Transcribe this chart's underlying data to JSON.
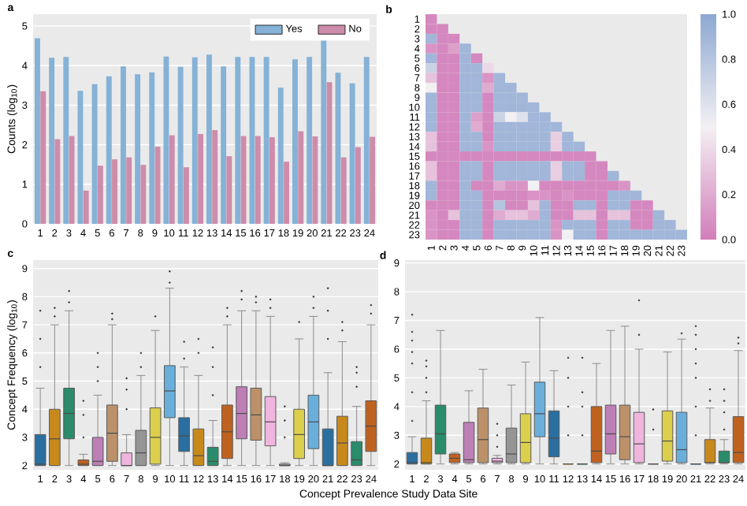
{
  "chart_data": [
    {
      "type": "bar",
      "title": "a",
      "ylabel": "Counts (log$_{10}$)",
      "categories": [
        "1",
        "2",
        "3",
        "4",
        "5",
        "6",
        "7",
        "8",
        "9",
        "10",
        "11",
        "12",
        "13",
        "14",
        "15",
        "16",
        "17",
        "18",
        "19",
        "20",
        "21",
        "22",
        "23",
        "24"
      ],
      "series": [
        {
          "name": "Yes",
          "color": "#85b2d6",
          "values": [
            4.69,
            4.2,
            4.22,
            3.36,
            3.53,
            3.73,
            3.98,
            3.78,
            3.83,
            4.23,
            3.97,
            4.21,
            4.28,
            3.98,
            4.22,
            4.22,
            4.22,
            3.44,
            4.16,
            4.22,
            4.73,
            3.82,
            3.55,
            4.22
          ]
        },
        {
          "name": "No",
          "color": "#cd8caa",
          "values": [
            3.35,
            2.14,
            2.22,
            0.84,
            1.47,
            1.63,
            1.68,
            1.49,
            1.95,
            2.24,
            1.43,
            2.27,
            2.37,
            1.71,
            2.22,
            2.22,
            2.19,
            1.57,
            2.34,
            2.21,
            3.58,
            1.68,
            1.94,
            2.2
          ]
        }
      ],
      "ylim": [
        0,
        5.3
      ],
      "yticks": [
        0,
        1,
        2,
        3,
        4,
        5
      ],
      "grid": "y",
      "legend": "top right"
    },
    {
      "type": "heatmap",
      "title": "b",
      "categories": [
        "1",
        "2",
        "3",
        "4",
        "5",
        "6",
        "7",
        "8",
        "9",
        "10",
        "11",
        "12",
        "13",
        "14",
        "15",
        "16",
        "17",
        "18",
        "19",
        "20",
        "21",
        "22",
        "23"
      ],
      "y_categories": [
        "1",
        "2",
        "3",
        "4",
        "5",
        "6",
        "7",
        "8",
        "9",
        "10",
        "11",
        "12",
        "13",
        "14",
        "15",
        "16",
        "17",
        "18",
        "19",
        "20",
        "21",
        "22",
        "23"
      ],
      "cells": [
        [
          0.05,
          null,
          null,
          null,
          null,
          null,
          null,
          null,
          null,
          null,
          null,
          null,
          null,
          null,
          null,
          null,
          null,
          null,
          null,
          null,
          null,
          null,
          null
        ],
        [
          0.05,
          0.05,
          null,
          null,
          null,
          null,
          null,
          null,
          null,
          null,
          null,
          null,
          null,
          null,
          null,
          null,
          null,
          null,
          null,
          null,
          null,
          null,
          null
        ],
        [
          0.9,
          0.05,
          0.05,
          null,
          null,
          null,
          null,
          null,
          null,
          null,
          null,
          null,
          null,
          null,
          null,
          null,
          null,
          null,
          null,
          null,
          null,
          null,
          null
        ],
        [
          0.1,
          0.05,
          0.15,
          0.9,
          null,
          null,
          null,
          null,
          null,
          null,
          null,
          null,
          null,
          null,
          null,
          null,
          null,
          null,
          null,
          null,
          null,
          null,
          null
        ],
        [
          0.9,
          0.05,
          0.05,
          0.9,
          0.05,
          null,
          null,
          null,
          null,
          null,
          null,
          null,
          null,
          null,
          null,
          null,
          null,
          null,
          null,
          null,
          null,
          null,
          null
        ],
        [
          0.7,
          0.05,
          0.05,
          0.9,
          0.9,
          0.4,
          null,
          null,
          null,
          null,
          null,
          null,
          null,
          null,
          null,
          null,
          null,
          null,
          null,
          null,
          null,
          null,
          null
        ],
        [
          0.3,
          0.05,
          0.05,
          0.9,
          0.9,
          0.1,
          0.9,
          null,
          null,
          null,
          null,
          null,
          null,
          null,
          null,
          null,
          null,
          null,
          null,
          null,
          null,
          null,
          null
        ],
        [
          0.5,
          0.05,
          0.05,
          0.9,
          0.9,
          0.2,
          0.9,
          0.9,
          null,
          null,
          null,
          null,
          null,
          null,
          null,
          null,
          null,
          null,
          null,
          null,
          null,
          null,
          null
        ],
        [
          0.9,
          0.05,
          0.05,
          0.9,
          0.9,
          0.05,
          0.9,
          0.9,
          0.9,
          null,
          null,
          null,
          null,
          null,
          null,
          null,
          null,
          null,
          null,
          null,
          null,
          null,
          null
        ],
        [
          0.9,
          0.05,
          0.05,
          0.9,
          0.9,
          0.05,
          0.9,
          0.9,
          0.9,
          0.9,
          null,
          null,
          null,
          null,
          null,
          null,
          null,
          null,
          null,
          null,
          null,
          null,
          null
        ],
        [
          0.9,
          0.05,
          0.05,
          0.9,
          0.15,
          0.05,
          0.7,
          0.5,
          0.6,
          0.9,
          0.9,
          null,
          null,
          null,
          null,
          null,
          null,
          null,
          null,
          null,
          null,
          null,
          null
        ],
        [
          0.9,
          0.05,
          0.05,
          0.9,
          0.2,
          0.05,
          0.9,
          0.9,
          0.9,
          0.9,
          0.9,
          0.9,
          null,
          null,
          null,
          null,
          null,
          null,
          null,
          null,
          null,
          null,
          null
        ],
        [
          0.3,
          0.05,
          0.05,
          0.9,
          0.9,
          0.05,
          0.9,
          0.9,
          0.9,
          0.9,
          0.9,
          0.35,
          0.9,
          null,
          null,
          null,
          null,
          null,
          null,
          null,
          null,
          null,
          null
        ],
        [
          0.3,
          0.05,
          0.05,
          0.9,
          0.9,
          0.1,
          0.9,
          0.9,
          0.9,
          0.9,
          0.9,
          0.35,
          0.9,
          0.9,
          null,
          null,
          null,
          null,
          null,
          null,
          null,
          null,
          null
        ],
        [
          0.05,
          0.05,
          0.05,
          0.05,
          0.05,
          0.05,
          0.05,
          0.05,
          0.05,
          0.05,
          0.05,
          0.05,
          0.05,
          0.05,
          0.05,
          null,
          null,
          null,
          null,
          null,
          null,
          null,
          null
        ],
        [
          0.3,
          0.05,
          0.05,
          0.9,
          0.9,
          0.05,
          0.9,
          0.9,
          0.9,
          0.9,
          0.9,
          0.35,
          0.9,
          0.9,
          0.05,
          0.05,
          null,
          null,
          null,
          null,
          null,
          null,
          null
        ],
        [
          0.3,
          0.05,
          0.05,
          0.9,
          0.9,
          0.05,
          0.9,
          0.9,
          0.9,
          0.9,
          0.9,
          0.35,
          0.9,
          0.9,
          0.05,
          0.05,
          0.9,
          null,
          null,
          null,
          null,
          null,
          null
        ],
        [
          0.9,
          0.05,
          0.05,
          0.9,
          0.05,
          0.05,
          0.2,
          0.1,
          0.1,
          0.5,
          0.05,
          0.05,
          0.05,
          0.05,
          0.05,
          0.05,
          0.05,
          0.1,
          null,
          null,
          null,
          null,
          null
        ],
        [
          0.9,
          0.05,
          0.05,
          0.9,
          0.9,
          0.05,
          0.05,
          0.05,
          0.05,
          0.1,
          0.1,
          0.05,
          0.1,
          0.05,
          0.05,
          0.05,
          0.9,
          0.9,
          0.9,
          null,
          null,
          null,
          null
        ],
        [
          0.05,
          0.05,
          0.05,
          0.9,
          0.9,
          0.05,
          0.8,
          0.05,
          0.05,
          0.3,
          0.9,
          0.05,
          0.05,
          0.9,
          0.9,
          0.05,
          0.9,
          0.9,
          0.05,
          0.05,
          null,
          null,
          null
        ],
        [
          0.1,
          0.05,
          0.3,
          0.9,
          0.9,
          0.05,
          0.2,
          0.3,
          0.3,
          0.2,
          0.9,
          0.05,
          0.05,
          0.3,
          0.3,
          0.05,
          0.3,
          0.3,
          0.05,
          0.05,
          0.9,
          null,
          null
        ],
        [
          0.1,
          0.05,
          0.05,
          0.9,
          0.9,
          0.05,
          0.9,
          0.9,
          0.9,
          0.9,
          0.9,
          0.1,
          0.9,
          0.9,
          0.9,
          0.05,
          0.9,
          0.9,
          0.05,
          0.05,
          0.9,
          0.9,
          null
        ],
        [
          0.1,
          0.05,
          0.05,
          0.9,
          0.9,
          0.05,
          0.9,
          0.9,
          0.9,
          0.9,
          0.9,
          0.1,
          0.5,
          0.9,
          0.9,
          0.05,
          0.9,
          0.9,
          0.9,
          0.9,
          0.9,
          0.9,
          0.9
        ]
      ],
      "clim": [
        0,
        1
      ],
      "cticks": [
        {
          "value": 0,
          "label": "0.0"
        },
        {
          "value": 0.2,
          "label": "0.2"
        },
        {
          "value": 0.4,
          "label": "0.4"
        },
        {
          "value": 0.6,
          "label": "0.6"
        },
        {
          "value": 0.8,
          "label": "0.8"
        },
        {
          "value": 1,
          "label": "1.0"
        }
      ]
    },
    {
      "type": "box",
      "title": "c",
      "xlabel": "Concept Prevalence Study Data Site",
      "ylabel": "Concept Frequency (log$_{10}$)",
      "categories": [
        "1",
        "2",
        "3",
        "4",
        "5",
        "6",
        "7",
        "8",
        "9",
        "10",
        "11",
        "12",
        "13",
        "14",
        "15",
        "16",
        "17",
        "18",
        "19",
        "20",
        "21",
        "22",
        "23",
        "24"
      ],
      "colors": [
        "#2a6fa0",
        "#c8891c",
        "#2a8c6a",
        "#c0621f",
        "#bd7fb5",
        "#bc9169",
        "#f0b5de",
        "#959595",
        "#dccf4c",
        "#6aafdc",
        "#2a6fa0",
        "#c8891c",
        "#2a8c6a",
        "#c0621f",
        "#bd7fb5",
        "#bc9169",
        "#f0b5de",
        "#959595",
        "#dccf4c",
        "#6aafdc",
        "#2a6fa0",
        "#c8891c",
        "#2a8c6a",
        "#c0621f"
      ],
      "boxes": [
        {
          "low": 2,
          "q1": 2,
          "median": 2.05,
          "q3": 3.1,
          "high": 4.75,
          "outliers": [
            5.5,
            6.5,
            7.5
          ]
        },
        {
          "low": 2,
          "q1": 2,
          "median": 2.95,
          "q3": 4.0,
          "high": 7.0,
          "outliers": [
            7.3,
            7.6
          ]
        },
        {
          "low": 2,
          "q1": 2.95,
          "median": 3.85,
          "q3": 4.75,
          "high": 7.5,
          "outliers": [
            7.8,
            8.2
          ]
        },
        {
          "low": 2,
          "q1": 2,
          "median": 2.05,
          "q3": 2.2,
          "high": 2.4,
          "outliers": [
            3,
            3.8,
            4.3
          ]
        },
        {
          "low": 2,
          "q1": 2,
          "median": 2.15,
          "q3": 3.0,
          "high": 4.5,
          "outliers": [
            5,
            5.5,
            6.0
          ]
        },
        {
          "low": 2,
          "q1": 2.15,
          "median": 3.15,
          "q3": 4.15,
          "high": 7.0,
          "outliers": [
            7.2,
            7.4
          ]
        },
        {
          "low": 2,
          "q1": 2,
          "median": 2.0,
          "q3": 2.45,
          "high": 3.1,
          "outliers": [
            4,
            4.7,
            5.1
          ]
        },
        {
          "low": 2,
          "q1": 2,
          "median": 2.45,
          "q3": 3.25,
          "high": 5.2,
          "outliers": [
            5.5,
            6.0
          ]
        },
        {
          "low": 2,
          "q1": 2.05,
          "median": 3.0,
          "q3": 4.05,
          "high": 6.8,
          "outliers": [
            7.3
          ]
        },
        {
          "low": 2,
          "q1": 3.7,
          "median": 4.65,
          "q3": 5.55,
          "high": 8.3,
          "outliers": [
            8.5,
            8.9
          ]
        },
        {
          "low": 2,
          "q1": 2.5,
          "median": 3.05,
          "q3": 3.7,
          "high": 5.5,
          "outliers": [
            5.8,
            6.4
          ]
        },
        {
          "low": 2,
          "q1": 2,
          "median": 2.35,
          "q3": 3.3,
          "high": 5.2,
          "outliers": [
            6.0,
            6.5
          ]
        },
        {
          "low": 2,
          "q1": 2,
          "median": 2.15,
          "q3": 2.65,
          "high": 3.6,
          "outliers": [
            4.5,
            5.5,
            6.2
          ]
        },
        {
          "low": 2,
          "q1": 2.25,
          "median": 3.2,
          "q3": 4.15,
          "high": 7.0,
          "outliers": [
            7.3,
            7.6
          ]
        },
        {
          "low": 2,
          "q1": 2.95,
          "median": 3.85,
          "q3": 4.8,
          "high": 7.5,
          "outliers": [
            7.9,
            8.2
          ]
        },
        {
          "low": 2,
          "q1": 2.9,
          "median": 3.8,
          "q3": 4.75,
          "high": 7.5,
          "outliers": [
            7.8,
            8.0
          ]
        },
        {
          "low": 2,
          "q1": 2.7,
          "median": 3.55,
          "q3": 4.45,
          "high": 7.3,
          "outliers": [
            7.6,
            7.9
          ]
        },
        {
          "low": 2,
          "q1": 2,
          "median": 2.0,
          "q3": 2.05,
          "high": 2.1,
          "outliers": [
            3,
            3.6,
            4.1
          ]
        },
        {
          "low": 2,
          "q1": 2.25,
          "median": 3.1,
          "q3": 4.0,
          "high": 6.5,
          "outliers": [
            7.1
          ]
        },
        {
          "low": 2,
          "q1": 2.6,
          "median": 3.55,
          "q3": 4.5,
          "high": 7.3,
          "outliers": [
            7.6,
            8.0
          ]
        },
        {
          "low": 2,
          "q1": 2,
          "median": 2.0,
          "q3": 3.3,
          "high": 5.3,
          "outliers": [
            6.5,
            7.5,
            8.3
          ]
        },
        {
          "low": 2,
          "q1": 2,
          "median": 2.8,
          "q3": 3.75,
          "high": 6.4,
          "outliers": [
            6.8,
            7.1
          ]
        },
        {
          "low": 2,
          "q1": 2,
          "median": 2.2,
          "q3": 2.85,
          "high": 4.1,
          "outliers": [
            4.8,
            5.3,
            5.5
          ]
        },
        {
          "low": 2,
          "q1": 2.5,
          "median": 3.4,
          "q3": 4.3,
          "high": 7.0,
          "outliers": [
            7.4,
            7.7
          ]
        }
      ],
      "ylim": [
        1.85,
        9.3
      ],
      "yticks": [
        2,
        3,
        4,
        5,
        6,
        7,
        8,
        9
      ],
      "grid": "y"
    },
    {
      "type": "box",
      "title": "d",
      "categories": [
        "1",
        "2",
        "3",
        "4",
        "5",
        "6",
        "7",
        "8",
        "9",
        "10",
        "11",
        "12",
        "13",
        "14",
        "15",
        "16",
        "17",
        "18",
        "19",
        "20",
        "21",
        "22",
        "23",
        "24"
      ],
      "colors": [
        "#2a6fa0",
        "#c8891c",
        "#2a8c6a",
        "#c0621f",
        "#bd7fb5",
        "#bc9169",
        "#f0b5de",
        "#959595",
        "#dccf4c",
        "#6aafdc",
        "#2a6fa0",
        "#c8891c",
        "#2a8c6a",
        "#c0621f",
        "#bd7fb5",
        "#bc9169",
        "#f0b5de",
        "#959595",
        "#dccf4c",
        "#6aafdc",
        "#2a6fa0",
        "#c8891c",
        "#2a8c6a",
        "#c0621f"
      ],
      "boxes": [
        {
          "low": 2,
          "q1": 2,
          "median": 2.05,
          "q3": 2.4,
          "high": 2.95,
          "outliers": [
            3.5,
            4.5,
            5.5,
            5.9,
            6.3,
            6.6,
            7.2
          ]
        },
        {
          "low": 2,
          "q1": 2,
          "median": 2.05,
          "q3": 2.9,
          "high": 4.2,
          "outliers": [
            4.5,
            5,
            5.4,
            5.6
          ]
        },
        {
          "low": 2,
          "q1": 2.35,
          "median": 3.05,
          "q3": 4.05,
          "high": 6.65
        },
        {
          "low": 2,
          "q1": 2.05,
          "median": 2.2,
          "q3": 2.35,
          "high": 2.4
        },
        {
          "low": 2,
          "q1": 2.05,
          "median": 2.15,
          "q3": 3.45,
          "high": 4.55
        },
        {
          "low": 2,
          "q1": 2.05,
          "median": 2.85,
          "q3": 3.95,
          "high": 5.3
        },
        {
          "low": 2,
          "q1": 2.05,
          "median": 2.1,
          "q3": 2.2,
          "high": 2.3,
          "outliers": [
            2.6,
            3.0,
            3.4
          ]
        },
        {
          "low": 2,
          "q1": 2.05,
          "median": 2.35,
          "q3": 3.25,
          "high": 4.75
        },
        {
          "low": 2,
          "q1": 2.05,
          "median": 2.75,
          "q3": 3.75,
          "high": 5.55
        },
        {
          "low": 2,
          "q1": 2.95,
          "median": 3.75,
          "q3": 4.85,
          "high": 7.1
        },
        {
          "low": 2,
          "q1": 2.25,
          "median": 2.9,
          "q3": 3.85,
          "high": 5.25
        },
        {
          "low": 2,
          "q1": 2,
          "median": 2.0,
          "q3": 2.0,
          "high": 2.0,
          "outliers": [
            3,
            4,
            5,
            5.7
          ]
        },
        {
          "low": 2,
          "q1": 2,
          "median": 2.0,
          "q3": 2.0,
          "high": 2.0,
          "outliers": [
            3,
            4,
            4.5,
            5.7
          ]
        },
        {
          "low": 2,
          "q1": 2.05,
          "median": 2.45,
          "q3": 4.0,
          "high": 5.5
        },
        {
          "low": 2,
          "q1": 2.35,
          "median": 3.05,
          "q3": 4.05,
          "high": 6.65
        },
        {
          "low": 2,
          "q1": 2.15,
          "median": 2.95,
          "q3": 4.05,
          "high": 6.8
        },
        {
          "low": 2,
          "q1": 2.05,
          "median": 2.7,
          "q3": 3.8,
          "high": 6.0,
          "outliers": [
            6.5,
            7.7
          ]
        },
        {
          "low": 2,
          "q1": 2,
          "median": 2.0,
          "q3": 2.0,
          "high": 2.0,
          "outliers": [
            3.2,
            3.9
          ]
        },
        {
          "low": 2,
          "q1": 2.1,
          "median": 2.8,
          "q3": 3.85,
          "high": 5.9
        },
        {
          "low": 2,
          "q1": 2.05,
          "median": 2.5,
          "q3": 3.8,
          "high": 6.35,
          "outliers": [
            6.55
          ]
        },
        {
          "low": 2,
          "q1": 2,
          "median": 2.0,
          "q3": 2.0,
          "high": 2.0,
          "outliers": [
            3,
            4,
            5,
            5.5,
            6,
            6.5,
            6.8
          ]
        },
        {
          "low": 2,
          "q1": 2.05,
          "median": 2.05,
          "q3": 2.85,
          "high": 3.95,
          "outliers": [
            4.2,
            4.6
          ]
        },
        {
          "low": 2,
          "q1": 2.05,
          "median": 2.05,
          "q3": 2.45,
          "high": 2.85,
          "outliers": [
            3.2,
            3.8,
            4.2,
            4.6
          ]
        },
        {
          "low": 2,
          "q1": 2.05,
          "median": 2.4,
          "q3": 3.65,
          "high": 5.95,
          "outliers": [
            6.2,
            6.4
          ]
        }
      ],
      "ylim": [
        1.8,
        9.1
      ],
      "yticks": [
        2,
        3,
        4,
        5,
        6,
        7,
        8,
        9
      ],
      "grid": "y"
    }
  ]
}
